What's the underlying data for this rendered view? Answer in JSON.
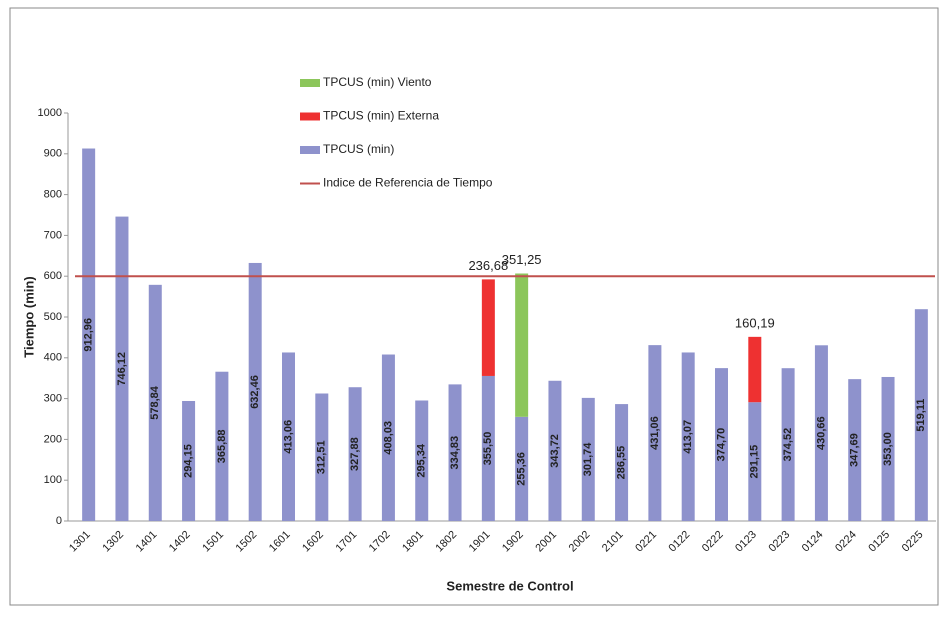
{
  "chart_data": {
    "type": "bar",
    "stacked": true,
    "x_label": "Semestre de Control",
    "y_label": "Tiempo (min)",
    "categories": [
      "1301",
      "1302",
      "1401",
      "1402",
      "1501",
      "1502",
      "1601",
      "1602",
      "1701",
      "1702",
      "1801",
      "1802",
      "1901",
      "1902",
      "2001",
      "2002",
      "2101",
      "0221",
      "0122",
      "0222",
      "0123",
      "0223",
      "0124",
      "0224",
      "0125",
      "0225"
    ],
    "series": [
      {
        "name": "TPCUS (min)",
        "color": "#8e92cc",
        "values": [
          912.96,
          746.12,
          578.84,
          294.15,
          365.88,
          632.46,
          413.06,
          312.51,
          327.88,
          408.03,
          295.34,
          334.83,
          355.5,
          255.36,
          343.72,
          301.74,
          286.55,
          431.06,
          413.07,
          374.7,
          291.15,
          374.52,
          430.66,
          347.69,
          353.0,
          519.11
        ],
        "value_labels": [
          "912,96",
          "746,12",
          "578,84",
          "294,15",
          "365,88",
          "632,46",
          "413,06",
          "312,51",
          "327,88",
          "408,03",
          "295,34",
          "334,83",
          "355,50",
          "255,36",
          "343,72",
          "301,74",
          "286,55",
          "431,06",
          "413,07",
          "374,70",
          "291,15",
          "374,52",
          "430,66",
          "347,69",
          "353,00",
          "519,11"
        ]
      },
      {
        "name": "TPCUS (min) Externa",
        "color": "#ee3131",
        "values": [
          null,
          null,
          null,
          null,
          null,
          null,
          null,
          null,
          null,
          null,
          null,
          null,
          236.68,
          null,
          null,
          null,
          null,
          null,
          null,
          null,
          160.19,
          null,
          null,
          null,
          null,
          null
        ],
        "value_labels": [
          null,
          null,
          null,
          null,
          null,
          null,
          null,
          null,
          null,
          null,
          null,
          null,
          "236,68",
          null,
          null,
          null,
          null,
          null,
          null,
          null,
          "160,19",
          null,
          null,
          null,
          null,
          null
        ]
      },
      {
        "name": "TPCUS (min) Viento",
        "color": "#8cc65b",
        "values": [
          null,
          null,
          null,
          null,
          null,
          null,
          null,
          null,
          null,
          null,
          null,
          null,
          null,
          351.25,
          null,
          null,
          null,
          null,
          null,
          null,
          null,
          null,
          null,
          null,
          null,
          null
        ],
        "value_labels": [
          null,
          null,
          null,
          null,
          null,
          null,
          null,
          null,
          null,
          null,
          null,
          null,
          null,
          "351,25",
          null,
          null,
          null,
          null,
          null,
          null,
          null,
          null,
          null,
          null,
          null,
          null
        ]
      }
    ],
    "reference_line": {
      "name": "Indice de Referencia de Tiempo",
      "color": "#c0504d",
      "value": 600
    },
    "ylim": [
      0,
      1000
    ],
    "yticks": [
      0,
      100,
      200,
      300,
      400,
      500,
      600,
      700,
      800,
      900,
      1000
    ],
    "grid": false
  }
}
